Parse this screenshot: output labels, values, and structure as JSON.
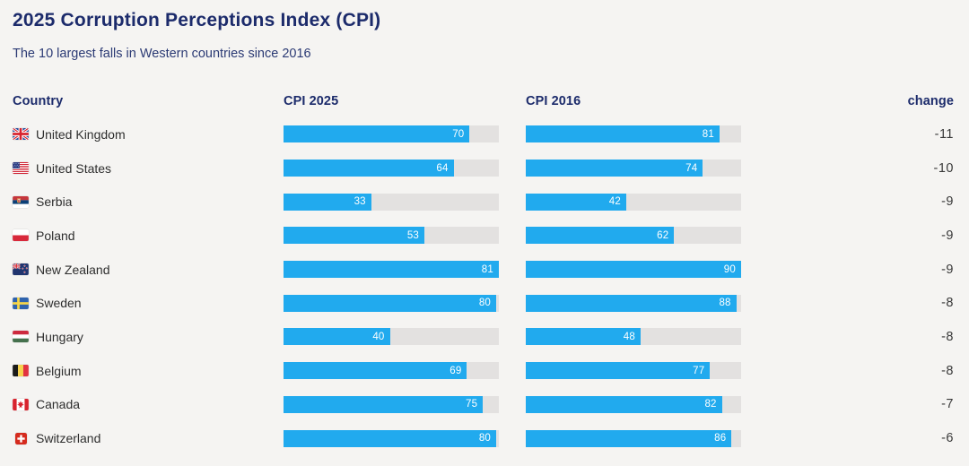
{
  "header": {
    "title": "2025 Corruption Perceptions Index (CPI)",
    "subtitle": "The 10 largest falls in Western countries since 2016"
  },
  "columns": {
    "country": "Country",
    "cpi2025": "CPI 2025",
    "cpi2016": "CPI 2016",
    "change": "change"
  },
  "colors": {
    "background": "#f5f4f2",
    "bar_blue": "#21aaee",
    "bar_track": "#e3e1e0",
    "heading_navy": "#1c2b6b",
    "body_text": "#2e2e2e",
    "bar_value_text": "#ffffff"
  },
  "chart_data": {
    "type": "bar",
    "orientation": "horizontal",
    "title": "2025 Corruption Perceptions Index (CPI)",
    "subtitle": "The 10 largest falls in Western countries since 2016",
    "categories": [
      "United Kingdom",
      "United States",
      "Serbia",
      "Poland",
      "New Zealand",
      "Sweden",
      "Hungary",
      "Belgium",
      "Canada",
      "Switzerland"
    ],
    "series": [
      {
        "name": "CPI 2025",
        "values": [
          70,
          64,
          33,
          53,
          81,
          80,
          40,
          69,
          75,
          80
        ],
        "axis_max": 81
      },
      {
        "name": "CPI 2016",
        "values": [
          81,
          74,
          42,
          62,
          90,
          88,
          48,
          77,
          82,
          86
        ],
        "axis_max": 90
      }
    ],
    "change": [
      -11,
      -10,
      -9,
      -9,
      -9,
      -8,
      -8,
      -8,
      -7,
      -6
    ],
    "legend": "none",
    "grid": "off",
    "value_labels": "inside-bar-right"
  },
  "rows": [
    {
      "country": "United Kingdom",
      "flag": "uk",
      "flag_icon": "flag-united-kingdom-icon",
      "cpi2025": 70,
      "cpi2016": 81,
      "change": "-11"
    },
    {
      "country": "United States",
      "flag": "us",
      "flag_icon": "flag-united-states-icon",
      "cpi2025": 64,
      "cpi2016": 74,
      "change": "-10"
    },
    {
      "country": "Serbia",
      "flag": "rs",
      "flag_icon": "flag-serbia-icon",
      "cpi2025": 33,
      "cpi2016": 42,
      "change": "-9"
    },
    {
      "country": "Poland",
      "flag": "pl",
      "flag_icon": "flag-poland-icon",
      "cpi2025": 53,
      "cpi2016": 62,
      "change": "-9"
    },
    {
      "country": "New Zealand",
      "flag": "nz",
      "flag_icon": "flag-new-zealand-icon",
      "cpi2025": 81,
      "cpi2016": 90,
      "change": "-9"
    },
    {
      "country": "Sweden",
      "flag": "se",
      "flag_icon": "flag-sweden-icon",
      "cpi2025": 80,
      "cpi2016": 88,
      "change": "-8"
    },
    {
      "country": "Hungary",
      "flag": "hu",
      "flag_icon": "flag-hungary-icon",
      "cpi2025": 40,
      "cpi2016": 48,
      "change": "-8"
    },
    {
      "country": "Belgium",
      "flag": "be",
      "flag_icon": "flag-belgium-icon",
      "cpi2025": 69,
      "cpi2016": 77,
      "change": "-8"
    },
    {
      "country": "Canada",
      "flag": "ca",
      "flag_icon": "flag-canada-icon",
      "cpi2025": 75,
      "cpi2016": 82,
      "change": "-7"
    },
    {
      "country": "Switzerland",
      "flag": "ch",
      "flag_icon": "flag-switzerland-icon",
      "cpi2025": 80,
      "cpi2016": 86,
      "change": "-6"
    }
  ]
}
